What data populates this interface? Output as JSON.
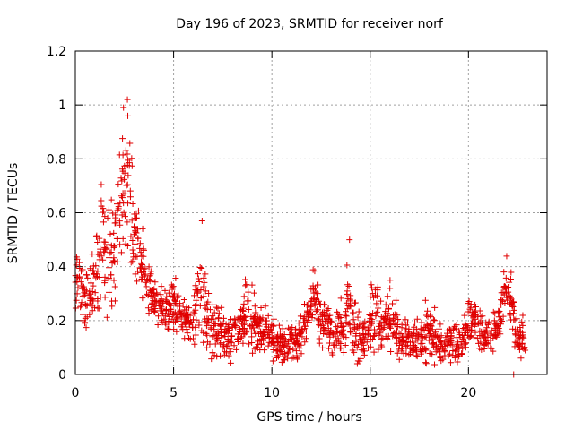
{
  "chart_data": {
    "type": "scatter",
    "title": "Day 196 of 2023, SRMTID for receiver norf",
    "xlabel": "GPS time / hours",
    "ylabel": "SRMTID / TECUs",
    "xlim": [
      0,
      24
    ],
    "ylim": [
      0,
      1.2
    ],
    "xticks": [
      0,
      5,
      10,
      15,
      20
    ],
    "xtick_labels": [
      "0",
      "5",
      "10",
      "15",
      "20"
    ],
    "yticks": [
      0,
      0.2,
      0.4,
      0.6,
      0.8,
      1.0,
      1.2
    ],
    "ytick_labels": [
      "0",
      "0.2",
      "0.4",
      "0.6",
      "0.8",
      "1",
      "1.2"
    ],
    "grid": true,
    "marker": "+",
    "color": "#e00000",
    "series": [
      {
        "name": "SRMTID",
        "description": "Dense + markers from ~0 to ~22.9 h; values mostly 0.05–0.4 TECU with a storm-like peak up to ~1.02 TECU near 2.5 h, secondary bursts ~0.57 at 6.4 h, ~0.5 at 13.9 h, ~0.46 at 22 h, and an isolated near-zero point at 22.3 h.",
        "envelope": [
          [
            0.0,
            0.28,
            0.55
          ],
          [
            0.3,
            0.22,
            0.42
          ],
          [
            0.6,
            0.2,
            0.4
          ],
          [
            1.0,
            0.25,
            0.55
          ],
          [
            1.3,
            0.3,
            0.74
          ],
          [
            1.6,
            0.27,
            0.6
          ],
          [
            2.0,
            0.32,
            0.7
          ],
          [
            2.2,
            0.4,
            0.83
          ],
          [
            2.4,
            0.45,
            0.95
          ],
          [
            2.6,
            0.5,
            1.02
          ],
          [
            2.8,
            0.42,
            0.85
          ],
          [
            3.0,
            0.35,
            0.72
          ],
          [
            3.3,
            0.33,
            0.6
          ],
          [
            3.6,
            0.3,
            0.48
          ],
          [
            4.0,
            0.25,
            0.35
          ],
          [
            4.5,
            0.2,
            0.33
          ],
          [
            5.0,
            0.22,
            0.38
          ],
          [
            5.5,
            0.18,
            0.3
          ],
          [
            6.0,
            0.15,
            0.3
          ],
          [
            6.4,
            0.2,
            0.57
          ],
          [
            6.8,
            0.12,
            0.3
          ],
          [
            7.5,
            0.1,
            0.25
          ],
          [
            8.0,
            0.1,
            0.24
          ],
          [
            8.7,
            0.15,
            0.38
          ],
          [
            9.2,
            0.13,
            0.3
          ],
          [
            9.8,
            0.12,
            0.25
          ],
          [
            10.3,
            0.08,
            0.2
          ],
          [
            10.8,
            0.08,
            0.2
          ],
          [
            11.3,
            0.1,
            0.2
          ],
          [
            11.8,
            0.18,
            0.3
          ],
          [
            12.1,
            0.22,
            0.42
          ],
          [
            12.6,
            0.15,
            0.27
          ],
          [
            13.2,
            0.1,
            0.25
          ],
          [
            13.6,
            0.09,
            0.3
          ],
          [
            13.9,
            0.12,
            0.5
          ],
          [
            14.3,
            0.1,
            0.25
          ],
          [
            14.8,
            0.09,
            0.22
          ],
          [
            15.2,
            0.12,
            0.43
          ],
          [
            15.6,
            0.12,
            0.25
          ],
          [
            16.0,
            0.14,
            0.38
          ],
          [
            16.5,
            0.1,
            0.22
          ],
          [
            17.0,
            0.09,
            0.2
          ],
          [
            17.5,
            0.09,
            0.22
          ],
          [
            18.0,
            0.1,
            0.32
          ],
          [
            18.5,
            0.08,
            0.2
          ],
          [
            19.0,
            0.1,
            0.2
          ],
          [
            19.5,
            0.1,
            0.2
          ],
          [
            20.0,
            0.12,
            0.28
          ],
          [
            20.3,
            0.18,
            0.31
          ],
          [
            20.7,
            0.12,
            0.22
          ],
          [
            21.2,
            0.12,
            0.22
          ],
          [
            21.6,
            0.15,
            0.3
          ],
          [
            21.9,
            0.25,
            0.46
          ],
          [
            22.2,
            0.2,
            0.38
          ],
          [
            22.5,
            0.1,
            0.2
          ],
          [
            22.9,
            0.12,
            0.25
          ]
        ],
        "outliers": [
          [
            22.3,
            0.0
          ],
          [
            6.45,
            0.57
          ],
          [
            13.95,
            0.5
          ],
          [
            2.65,
            1.02
          ],
          [
            2.45,
            0.99
          ]
        ]
      }
    ]
  }
}
